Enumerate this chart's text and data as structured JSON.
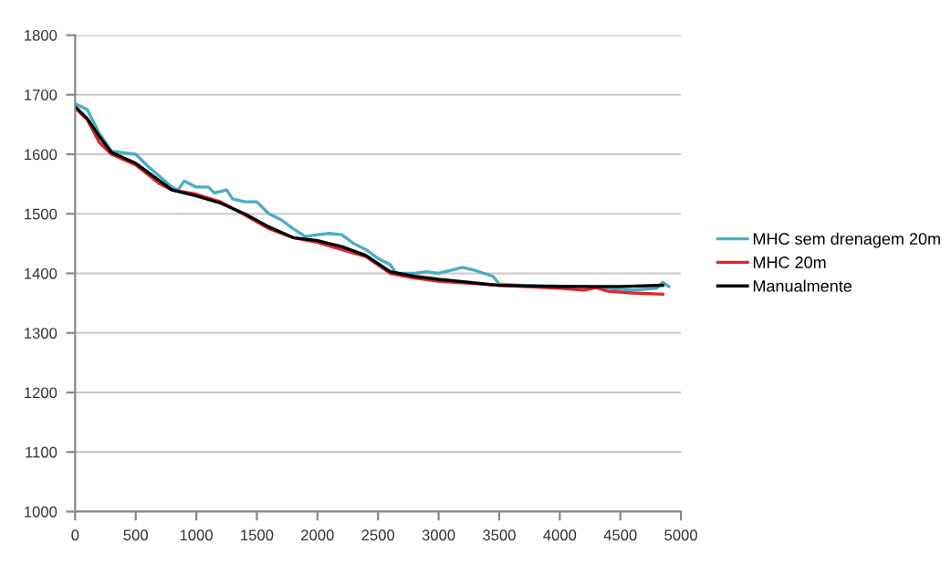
{
  "chart_data": {
    "type": "line",
    "xlim": [
      0,
      5000
    ],
    "xticks": [
      0,
      500,
      1000,
      1500,
      2000,
      2500,
      3000,
      3500,
      4000,
      4500,
      5000
    ],
    "ylim": [
      1000,
      1800
    ],
    "yticks": [
      1000,
      1100,
      1200,
      1300,
      1400,
      1500,
      1600,
      1700,
      1800
    ],
    "grid": "y",
    "legend": "right",
    "marker": "none",
    "line_style": "solid",
    "series": [
      {
        "name": "MHC sem drenagem 20m",
        "color": "#4bacc6",
        "x": [
          0,
          100,
          200,
          300,
          500,
          600,
          800,
          850,
          900,
          1000,
          1100,
          1150,
          1250,
          1300,
          1400,
          1500,
          1600,
          1700,
          1800,
          1900,
          2000,
          2100,
          2200,
          2300,
          2400,
          2500,
          2600,
          2650,
          2800,
          2900,
          3000,
          3100,
          3200,
          3300,
          3450,
          3500,
          3700,
          4200,
          4400,
          4600,
          4800,
          4850,
          4900
        ],
        "values": [
          1685,
          1675,
          1635,
          1605,
          1600,
          1580,
          1545,
          1540,
          1555,
          1545,
          1545,
          1535,
          1540,
          1525,
          1520,
          1520,
          1500,
          1490,
          1475,
          1462,
          1465,
          1467,
          1465,
          1450,
          1440,
          1425,
          1415,
          1400,
          1400,
          1403,
          1400,
          1405,
          1410,
          1405,
          1395,
          1382,
          1380,
          1378,
          1375,
          1372,
          1375,
          1385,
          1378
        ]
      },
      {
        "name": "MHC 20m",
        "color": "#e0262b",
        "x": [
          0,
          100,
          200,
          300,
          500,
          700,
          800,
          1000,
          1200,
          1400,
          1600,
          1800,
          2000,
          2200,
          2400,
          2600,
          2800,
          3000,
          3500,
          4000,
          4200,
          4300,
          4400,
          4600,
          4850
        ],
        "values": [
          1678,
          1658,
          1620,
          1600,
          1582,
          1550,
          1540,
          1533,
          1520,
          1498,
          1475,
          1460,
          1452,
          1440,
          1428,
          1400,
          1392,
          1387,
          1380,
          1375,
          1372,
          1376,
          1370,
          1367,
          1365
        ]
      },
      {
        "name": "Manualmente",
        "color": "#000000",
        "x": [
          0,
          100,
          200,
          300,
          500,
          700,
          800,
          1000,
          1200,
          1400,
          1600,
          1800,
          2000,
          2200,
          2400,
          2600,
          2800,
          3000,
          3500,
          4000,
          4500,
          4850
        ],
        "values": [
          1680,
          1660,
          1630,
          1603,
          1585,
          1555,
          1540,
          1530,
          1518,
          1500,
          1478,
          1460,
          1455,
          1445,
          1430,
          1403,
          1395,
          1390,
          1380,
          1378,
          1378,
          1380
        ]
      }
    ]
  }
}
